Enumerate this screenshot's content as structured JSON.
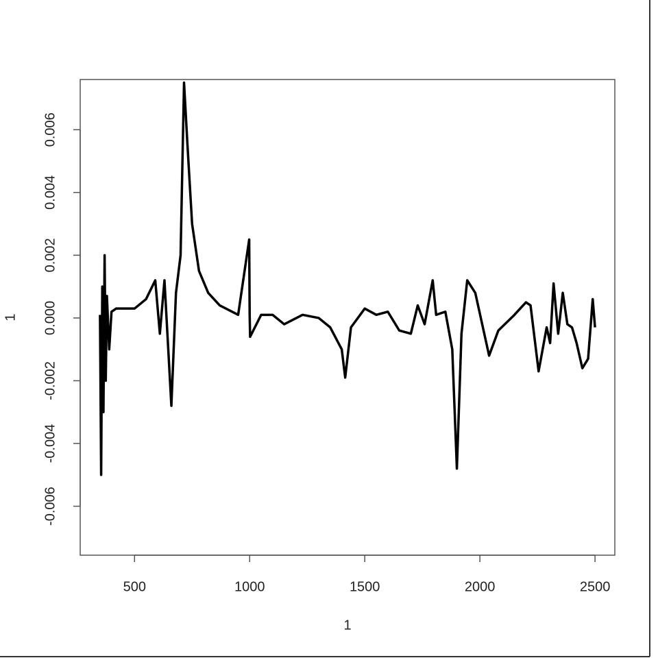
{
  "chart_data": {
    "type": "line",
    "xlabel": "1",
    "ylabel": "1",
    "x": [
      350,
      355,
      360,
      365,
      370,
      375,
      380,
      390,
      400,
      420,
      450,
      500,
      550,
      590,
      610,
      630,
      660,
      680,
      700,
      715,
      730,
      750,
      780,
      820,
      870,
      950,
      998,
      1000,
      1002,
      1050,
      1100,
      1150,
      1230,
      1300,
      1350,
      1400,
      1415,
      1440,
      1500,
      1550,
      1600,
      1650,
      1700,
      1730,
      1760,
      1795,
      1810,
      1850,
      1880,
      1900,
      1920,
      1945,
      1980,
      2010,
      2040,
      2080,
      2150,
      2200,
      2220,
      2255,
      2290,
      2305,
      2320,
      2340,
      2360,
      2380,
      2400,
      2420,
      2445,
      2470,
      2490,
      2500
    ],
    "values": [
      0.0001,
      -0.005,
      0.001,
      -0.003,
      0.002,
      -0.002,
      0.0007,
      -0.001,
      0.0002,
      0.0003,
      0.0003,
      0.0003,
      0.0006,
      0.0012,
      -0.0005,
      0.0012,
      -0.0028,
      0.0008,
      0.002,
      0.0075,
      0.0055,
      0.003,
      0.0015,
      0.0008,
      0.0004,
      0.0001,
      0.0025,
      0.0001,
      -0.0006,
      0.0001,
      0.0001,
      -0.0002,
      0.0001,
      0.0,
      -0.0003,
      -0.001,
      -0.0019,
      -0.0003,
      0.0003,
      0.0001,
      0.0002,
      -0.0004,
      -0.0005,
      0.0004,
      -0.0002,
      0.0012,
      0.0001,
      0.0002,
      -0.001,
      -0.0048,
      -0.0005,
      0.0012,
      0.0008,
      -0.0002,
      -0.0012,
      -0.0004,
      0.0001,
      0.0005,
      0.0004,
      -0.0017,
      -0.0003,
      -0.0008,
      0.0011,
      -0.0005,
      0.0008,
      -0.0002,
      -0.0003,
      -0.0008,
      -0.0016,
      -0.0013,
      0.0006,
      -0.0003
    ],
    "color": "#000000",
    "xlim": [
      264,
      2586
    ],
    "ylim": [
      -0.00756,
      0.0076
    ],
    "xticks": [
      500,
      1000,
      1500,
      2000,
      2500
    ],
    "yticks": [
      -0.006,
      -0.004,
      -0.002,
      {
        "value": 0,
        "label": "0.000"
      },
      0.002,
      0.004,
      0.006
    ]
  }
}
